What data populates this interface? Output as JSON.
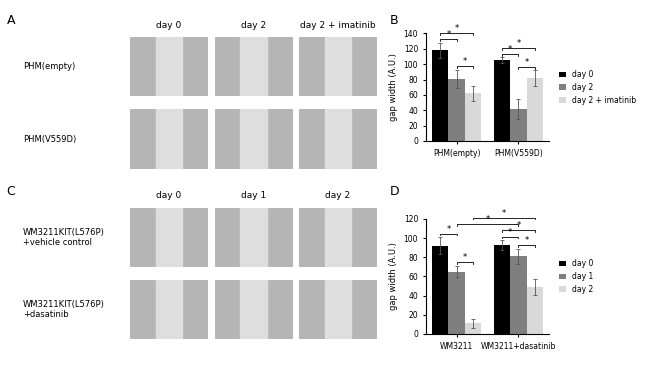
{
  "chart_data": [
    {
      "type": "bar",
      "panel_label": "B",
      "categories": [
        "PHM(empty)",
        "PHM(V559D)"
      ],
      "y_label": "gap width (A.U.)",
      "ylim": [
        0,
        140
      ],
      "yticks": [
        0,
        20,
        40,
        60,
        80,
        100,
        120,
        140
      ],
      "grid": false,
      "legend": "center left",
      "series": [
        {
          "name": "day 0",
          "color": "#000000",
          "values": [
            118,
            105
          ],
          "errors": [
            10,
            4
          ]
        },
        {
          "name": "day 2",
          "color": "#7f7f7f",
          "values": [
            81,
            42
          ],
          "errors": [
            12,
            13
          ]
        },
        {
          "name": "day 2 + imatinib",
          "color": "#d9d9d9",
          "values": [
            62,
            82
          ],
          "errors": [
            10,
            10
          ]
        }
      ],
      "significance": [
        {
          "from": [
            0,
            0
          ],
          "to": [
            0,
            1
          ],
          "label": "*"
        },
        {
          "from": [
            0,
            1
          ],
          "to": [
            0,
            2
          ],
          "label": "*"
        },
        {
          "from": [
            0,
            0
          ],
          "to": [
            0,
            2
          ],
          "label": "*"
        },
        {
          "from": [
            1,
            0
          ],
          "to": [
            1,
            1
          ],
          "label": "*"
        },
        {
          "from": [
            1,
            1
          ],
          "to": [
            1,
            2
          ],
          "label": "*"
        },
        {
          "from": [
            1,
            0
          ],
          "to": [
            1,
            2
          ],
          "label": "*"
        }
      ]
    },
    {
      "type": "bar",
      "panel_label": "D",
      "categories": [
        "WM3211",
        "WM3211+dasatinib"
      ],
      "y_label": "gap width (A.U.)",
      "ylim": [
        0,
        120
      ],
      "yticks": [
        0,
        20,
        40,
        60,
        80,
        100,
        120
      ],
      "grid": false,
      "legend": "center left",
      "series": [
        {
          "name": "day 0",
          "color": "#000000",
          "values": [
            92,
            93
          ],
          "errors": [
            9,
            5
          ]
        },
        {
          "name": "day 1",
          "color": "#7f7f7f",
          "values": [
            65,
            81
          ],
          "errors": [
            6,
            8
          ]
        },
        {
          "name": "day 2",
          "color": "#d9d9d9",
          "values": [
            11,
            49
          ],
          "errors": [
            5,
            8
          ]
        }
      ],
      "significance": [
        {
          "from": [
            0,
            0
          ],
          "to": [
            0,
            1
          ],
          "label": "*"
        },
        {
          "from": [
            0,
            1
          ],
          "to": [
            0,
            2
          ],
          "label": "*"
        },
        {
          "from": [
            1,
            0
          ],
          "to": [
            1,
            1
          ],
          "label": "*"
        },
        {
          "from": [
            1,
            1
          ],
          "to": [
            1,
            2
          ],
          "label": "*"
        },
        {
          "from": [
            1,
            0
          ],
          "to": [
            1,
            2
          ],
          "label": "*"
        },
        {
          "from": [
            0,
            1
          ],
          "to": [
            1,
            1
          ],
          "label": "*"
        },
        {
          "from": [
            0,
            2
          ],
          "to": [
            1,
            2
          ],
          "label": "*"
        }
      ]
    }
  ],
  "image_panels": [
    {
      "panel_label": "A",
      "columns": [
        "day 0",
        "day 2",
        "day 2 + imatinib"
      ],
      "rows": [
        [
          "PHM(empty)"
        ],
        [
          "PHM(V559D)"
        ]
      ]
    },
    {
      "panel_label": "C",
      "columns": [
        "day 0",
        "day 1",
        "day 2"
      ],
      "rows": [
        [
          "WM3211KIT(L576P)",
          "+vehicle control"
        ],
        [
          "WM3211KIT(L576P)",
          "+dasatinib"
        ]
      ]
    }
  ]
}
